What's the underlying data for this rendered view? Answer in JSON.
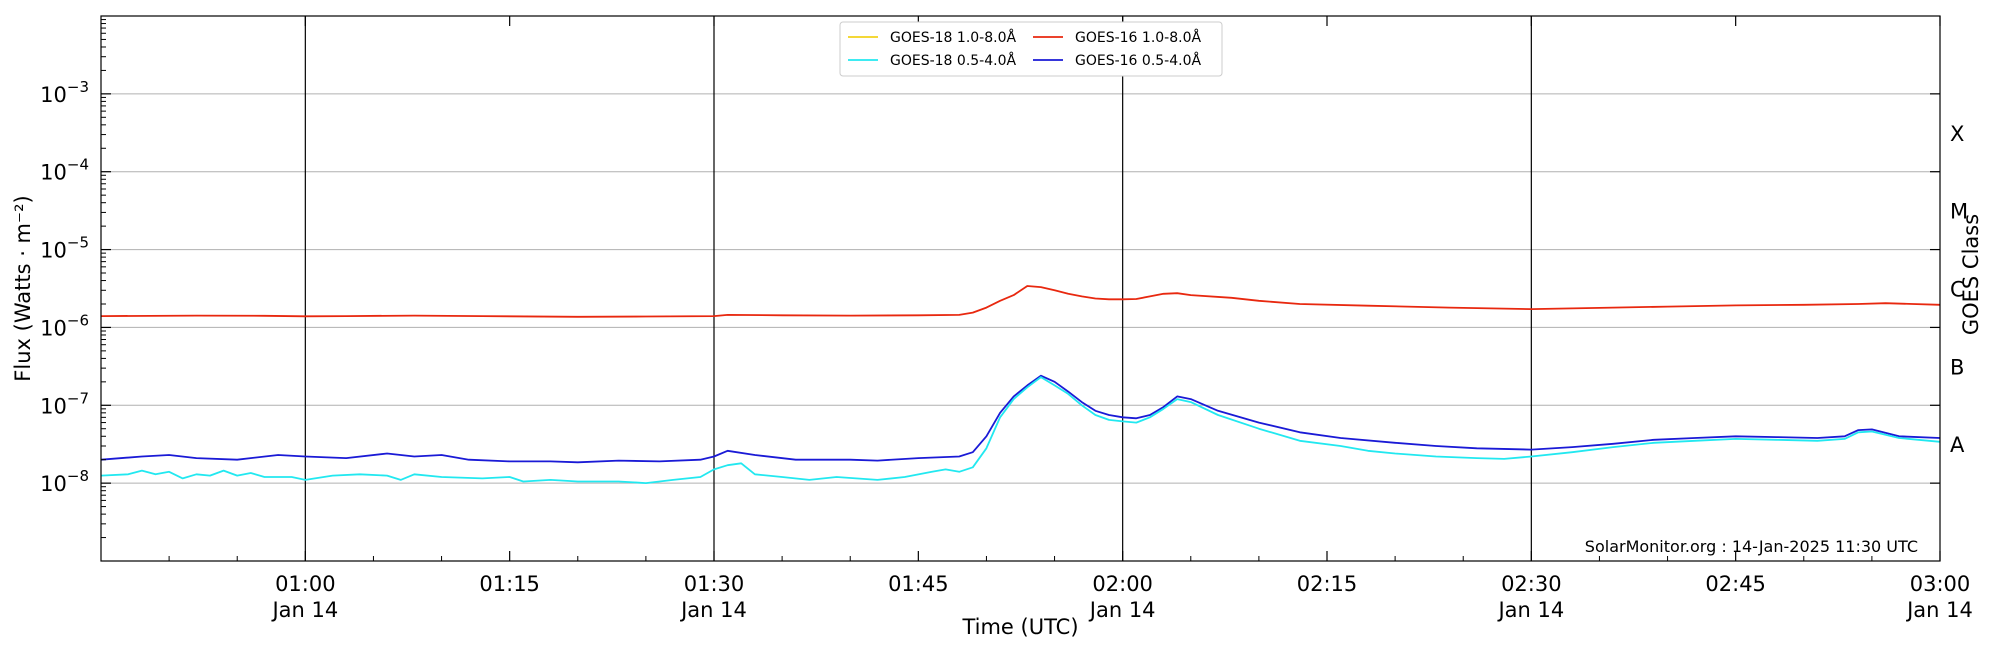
{
  "chart_data": {
    "type": "line",
    "title": "",
    "xlabel": "Time (UTC)",
    "ylabel": "Flux (Watts · m⁻²)",
    "ylabel_right": "GOES Class",
    "y_scale": "log",
    "ylim": [
      1e-09,
      0.01
    ],
    "xlim": [
      "00:45",
      "03:00"
    ],
    "grid": "horizontal at decades",
    "legend_position": "top-center",
    "credit": "SolarMonitor.org : 14-Jan-2025 11:30 UTC",
    "y_ticks": [
      {
        "value": 1e-08,
        "base": "10",
        "exp": "−8"
      },
      {
        "value": 1e-07,
        "base": "10",
        "exp": "−7"
      },
      {
        "value": 1e-06,
        "base": "10",
        "exp": "−6"
      },
      {
        "value": 1e-05,
        "base": "10",
        "exp": "−5"
      },
      {
        "value": 0.0001,
        "base": "10",
        "exp": "−4"
      },
      {
        "value": 0.001,
        "base": "10",
        "exp": "−3"
      }
    ],
    "x_ticks": [
      {
        "minutes": 60,
        "label": "01:00",
        "sub": "Jan 14",
        "vline": true
      },
      {
        "minutes": 75,
        "label": "01:15",
        "sub": "",
        "vline": false
      },
      {
        "minutes": 90,
        "label": "01:30",
        "sub": "Jan 14",
        "vline": true
      },
      {
        "minutes": 105,
        "label": "01:45",
        "sub": "",
        "vline": false
      },
      {
        "minutes": 120,
        "label": "02:00",
        "sub": "Jan 14",
        "vline": true
      },
      {
        "minutes": 135,
        "label": "02:15",
        "sub": "",
        "vline": false
      },
      {
        "minutes": 150,
        "label": "02:30",
        "sub": "Jan 14",
        "vline": true
      },
      {
        "minutes": 165,
        "label": "02:45",
        "sub": "",
        "vline": false
      },
      {
        "minutes": 180,
        "label": "03:00",
        "sub": "Jan 14",
        "vline": false
      }
    ],
    "goes_classes": [
      {
        "label": "A",
        "value": 1e-08
      },
      {
        "label": "B",
        "value": 1e-07
      },
      {
        "label": "C",
        "value": 1e-06
      },
      {
        "label": "M",
        "value": 1e-05
      },
      {
        "label": "X",
        "value": 0.0001
      }
    ],
    "legend": [
      {
        "name": "GOES-18 1.0-8.0Å",
        "color": "#f2d21b"
      },
      {
        "name": "GOES-18 0.5-4.0Å",
        "color": "#22e8f0"
      },
      {
        "name": "GOES-16 1.0-8.0Å",
        "color": "#e8280f"
      },
      {
        "name": "GOES-16 0.5-4.0Å",
        "color": "#1a1ad6"
      }
    ],
    "series": [
      {
        "name": "GOES-16 1.0-8.0Å",
        "color": "#e8280f",
        "points": [
          [
            "00:45",
            1.4e-06
          ],
          [
            "00:52",
            1.42e-06
          ],
          [
            "00:57",
            1.41e-06
          ],
          [
            "01:00",
            1.39e-06
          ],
          [
            "01:03",
            1.4e-06
          ],
          [
            "01:08",
            1.42e-06
          ],
          [
            "01:13",
            1.4e-06
          ],
          [
            "01:20",
            1.37e-06
          ],
          [
            "01:25",
            1.38e-06
          ],
          [
            "01:30",
            1.4e-06
          ],
          [
            "01:31",
            1.45e-06
          ],
          [
            "01:35",
            1.43e-06
          ],
          [
            "01:40",
            1.42e-06
          ],
          [
            "01:45",
            1.43e-06
          ],
          [
            "01:48",
            1.45e-06
          ],
          [
            "01:49",
            1.55e-06
          ],
          [
            "01:50",
            1.8e-06
          ],
          [
            "01:51",
            2.2e-06
          ],
          [
            "01:52",
            2.6e-06
          ],
          [
            "01:53",
            3.4e-06
          ],
          [
            "01:54",
            3.3e-06
          ],
          [
            "01:55",
            3e-06
          ],
          [
            "01:56",
            2.7e-06
          ],
          [
            "01:57",
            2.5e-06
          ],
          [
            "01:58",
            2.35e-06
          ],
          [
            "01:59",
            2.3e-06
          ],
          [
            "02:00",
            2.3e-06
          ],
          [
            "02:01",
            2.32e-06
          ],
          [
            "02:02",
            2.5e-06
          ],
          [
            "02:03",
            2.7e-06
          ],
          [
            "02:04",
            2.75e-06
          ],
          [
            "02:05",
            2.6e-06
          ],
          [
            "02:08",
            2.4e-06
          ],
          [
            "02:10",
            2.2e-06
          ],
          [
            "02:13",
            2e-06
          ],
          [
            "02:18",
            1.9e-06
          ],
          [
            "02:24",
            1.8e-06
          ],
          [
            "02:30",
            1.72e-06
          ],
          [
            "02:35",
            1.78e-06
          ],
          [
            "02:40",
            1.85e-06
          ],
          [
            "02:45",
            1.92e-06
          ],
          [
            "02:50",
            1.95e-06
          ],
          [
            "02:54",
            2e-06
          ],
          [
            "02:56",
            2.05e-06
          ],
          [
            "02:58",
            2e-06
          ],
          [
            "03:00",
            1.95e-06
          ]
        ]
      },
      {
        "name": "GOES-16 0.5-4.0Å",
        "color": "#1a1ad6",
        "points": [
          [
            "00:45",
            2e-08
          ],
          [
            "00:48",
            2.2e-08
          ],
          [
            "00:50",
            2.3e-08
          ],
          [
            "00:52",
            2.1e-08
          ],
          [
            "00:55",
            2e-08
          ],
          [
            "00:58",
            2.3e-08
          ],
          [
            "01:00",
            2.2e-08
          ],
          [
            "01:03",
            2.1e-08
          ],
          [
            "01:06",
            2.4e-08
          ],
          [
            "01:08",
            2.2e-08
          ],
          [
            "01:10",
            2.3e-08
          ],
          [
            "01:12",
            2e-08
          ],
          [
            "01:15",
            1.9e-08
          ],
          [
            "01:18",
            1.9e-08
          ],
          [
            "01:20",
            1.85e-08
          ],
          [
            "01:23",
            1.95e-08
          ],
          [
            "01:26",
            1.9e-08
          ],
          [
            "01:29",
            2e-08
          ],
          [
            "01:30",
            2.2e-08
          ],
          [
            "01:31",
            2.6e-08
          ],
          [
            "01:33",
            2.3e-08
          ],
          [
            "01:36",
            2e-08
          ],
          [
            "01:40",
            2e-08
          ],
          [
            "01:42",
            1.95e-08
          ],
          [
            "01:45",
            2.1e-08
          ],
          [
            "01:48",
            2.2e-08
          ],
          [
            "01:49",
            2.5e-08
          ],
          [
            "01:50",
            4e-08
          ],
          [
            "01:51",
            8e-08
          ],
          [
            "01:52",
            1.3e-07
          ],
          [
            "01:53",
            1.8e-07
          ],
          [
            "01:54",
            2.4e-07
          ],
          [
            "01:55",
            2e-07
          ],
          [
            "01:56",
            1.5e-07
          ],
          [
            "01:57",
            1.1e-07
          ],
          [
            "01:58",
            8.5e-08
          ],
          [
            "01:59",
            7.5e-08
          ],
          [
            "02:00",
            7e-08
          ],
          [
            "02:01",
            6.8e-08
          ],
          [
            "02:02",
            7.5e-08
          ],
          [
            "02:03",
            9.5e-08
          ],
          [
            "02:04",
            1.3e-07
          ],
          [
            "02:05",
            1.2e-07
          ],
          [
            "02:07",
            8.5e-08
          ],
          [
            "02:10",
            6e-08
          ],
          [
            "02:13",
            4.5e-08
          ],
          [
            "02:16",
            3.8e-08
          ],
          [
            "02:20",
            3.3e-08
          ],
          [
            "02:23",
            3e-08
          ],
          [
            "02:26",
            2.8e-08
          ],
          [
            "02:30",
            2.7e-08
          ],
          [
            "02:33",
            2.9e-08
          ],
          [
            "02:36",
            3.2e-08
          ],
          [
            "02:39",
            3.6e-08
          ],
          [
            "02:42",
            3.8e-08
          ],
          [
            "02:45",
            4e-08
          ],
          [
            "02:48",
            3.9e-08
          ],
          [
            "02:51",
            3.8e-08
          ],
          [
            "02:53",
            4e-08
          ],
          [
            "02:54",
            4.8e-08
          ],
          [
            "02:55",
            4.9e-08
          ],
          [
            "02:57",
            4e-08
          ],
          [
            "03:00",
            3.8e-08
          ]
        ]
      },
      {
        "name": "GOES-18 0.5-4.0Å",
        "color": "#22e8f0",
        "points": [
          [
            "00:45",
            1.25e-08
          ],
          [
            "00:47",
            1.3e-08
          ],
          [
            "00:48",
            1.45e-08
          ],
          [
            "00:49",
            1.3e-08
          ],
          [
            "00:50",
            1.4e-08
          ],
          [
            "00:51",
            1.15e-08
          ],
          [
            "00:52",
            1.3e-08
          ],
          [
            "00:53",
            1.25e-08
          ],
          [
            "00:54",
            1.45e-08
          ],
          [
            "00:55",
            1.25e-08
          ],
          [
            "00:56",
            1.35e-08
          ],
          [
            "00:57",
            1.2e-08
          ],
          [
            "00:59",
            1.2e-08
          ],
          [
            "01:00",
            1.1e-08
          ],
          [
            "01:02",
            1.25e-08
          ],
          [
            "01:04",
            1.3e-08
          ],
          [
            "01:06",
            1.25e-08
          ],
          [
            "01:07",
            1.1e-08
          ],
          [
            "01:08",
            1.3e-08
          ],
          [
            "01:10",
            1.2e-08
          ],
          [
            "01:13",
            1.15e-08
          ],
          [
            "01:15",
            1.2e-08
          ],
          [
            "01:16",
            1.05e-08
          ],
          [
            "01:18",
            1.1e-08
          ],
          [
            "01:20",
            1.05e-08
          ],
          [
            "01:23",
            1.05e-08
          ],
          [
            "01:25",
            1e-08
          ],
          [
            "01:27",
            1.1e-08
          ],
          [
            "01:29",
            1.2e-08
          ],
          [
            "01:30",
            1.5e-08
          ],
          [
            "01:31",
            1.7e-08
          ],
          [
            "01:32",
            1.8e-08
          ],
          [
            "01:33",
            1.3e-08
          ],
          [
            "01:35",
            1.2e-08
          ],
          [
            "01:37",
            1.1e-08
          ],
          [
            "01:39",
            1.2e-08
          ],
          [
            "01:42",
            1.1e-08
          ],
          [
            "01:44",
            1.2e-08
          ],
          [
            "01:46",
            1.4e-08
          ],
          [
            "01:47",
            1.5e-08
          ],
          [
            "01:48",
            1.4e-08
          ],
          [
            "01:49",
            1.6e-08
          ],
          [
            "01:50",
            2.8e-08
          ],
          [
            "01:51",
            7e-08
          ],
          [
            "01:52",
            1.2e-07
          ],
          [
            "01:53",
            1.7e-07
          ],
          [
            "01:54",
            2.3e-07
          ],
          [
            "01:55",
            1.8e-07
          ],
          [
            "01:56",
            1.4e-07
          ],
          [
            "01:57",
            1e-07
          ],
          [
            "01:58",
            7.5e-08
          ],
          [
            "01:59",
            6.5e-08
          ],
          [
            "02:00",
            6.2e-08
          ],
          [
            "02:01",
            6e-08
          ],
          [
            "02:02",
            7e-08
          ],
          [
            "02:03",
            9e-08
          ],
          [
            "02:04",
            1.2e-07
          ],
          [
            "02:05",
            1.1e-07
          ],
          [
            "02:07",
            7.5e-08
          ],
          [
            "02:10",
            5e-08
          ],
          [
            "02:13",
            3.5e-08
          ],
          [
            "02:16",
            3e-08
          ],
          [
            "02:18",
            2.6e-08
          ],
          [
            "02:20",
            2.4e-08
          ],
          [
            "02:23",
            2.2e-08
          ],
          [
            "02:26",
            2.1e-08
          ],
          [
            "02:28",
            2.05e-08
          ],
          [
            "02:30",
            2.2e-08
          ],
          [
            "02:33",
            2.5e-08
          ],
          [
            "02:36",
            2.9e-08
          ],
          [
            "02:39",
            3.3e-08
          ],
          [
            "02:42",
            3.5e-08
          ],
          [
            "02:45",
            3.7e-08
          ],
          [
            "02:48",
            3.6e-08
          ],
          [
            "02:51",
            3.5e-08
          ],
          [
            "02:53",
            3.7e-08
          ],
          [
            "02:54",
            4.5e-08
          ],
          [
            "02:55",
            4.6e-08
          ],
          [
            "02:57",
            3.8e-08
          ],
          [
            "03:00",
            3.4e-08
          ]
        ]
      }
    ]
  }
}
